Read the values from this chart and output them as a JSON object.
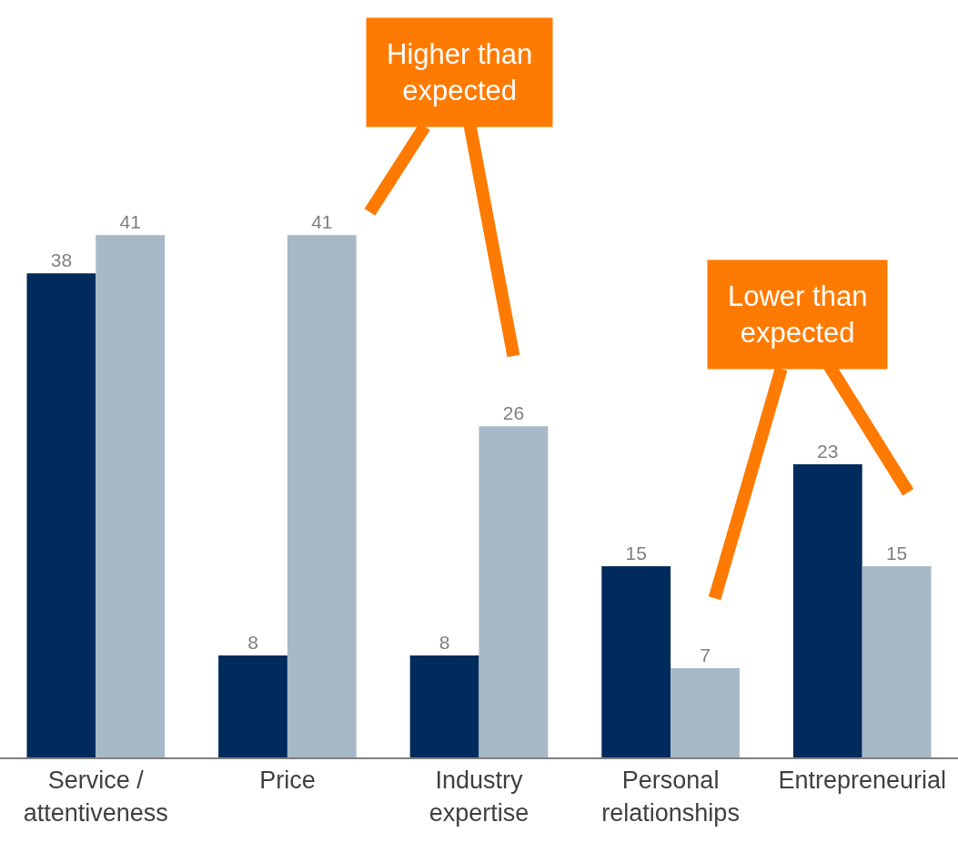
{
  "chart_data": {
    "type": "bar",
    "categories": [
      "Service / attentiveness",
      "Price",
      "Industry expertise",
      "Personal relationships",
      "Entrepreneurial"
    ],
    "series": [
      {
        "color": "#002b5c",
        "values": [
          38,
          8,
          8,
          15,
          23
        ]
      },
      {
        "color": "#a7b8c7",
        "values": [
          41,
          41,
          26,
          7,
          15
        ]
      }
    ],
    "data_labels": true,
    "annotations": [
      "Higher than expected",
      "Lower than expected"
    ]
  }
}
